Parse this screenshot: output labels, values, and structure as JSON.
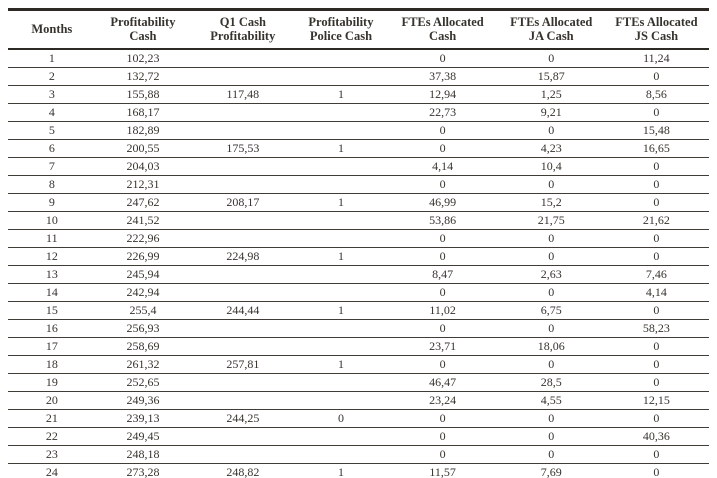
{
  "colors": {
    "text": "#37332e",
    "rule_heavy": "#2d2a26",
    "rule_light": "#403c36",
    "background": "#ffffff"
  },
  "table": {
    "headers": [
      "Months",
      "Profitability\nCash",
      "Q1 Cash\nProfitability",
      "Profitability\nPolice Cash",
      "FTEs Allocated\nCash",
      "FTEs Allocated\nJA Cash",
      "FTEs Allocated\nJS Cash"
    ],
    "rows": [
      [
        "1",
        "102,23",
        "",
        "",
        "0",
        "0",
        "11,24"
      ],
      [
        "2",
        "132,72",
        "",
        "",
        "37,38",
        "15,87",
        "0"
      ],
      [
        "3",
        "155,88",
        "117,48",
        "1",
        "12,94",
        "1,25",
        "8,56"
      ],
      [
        "4",
        "168,17",
        "",
        "",
        "22,73",
        "9,21",
        "0"
      ],
      [
        "5",
        "182,89",
        "",
        "",
        "0",
        "0",
        "15,48"
      ],
      [
        "6",
        "200,55",
        "175,53",
        "1",
        "0",
        "4,23",
        "16,65"
      ],
      [
        "7",
        "204,03",
        "",
        "",
        "4,14",
        "10,4",
        "0"
      ],
      [
        "8",
        "212,31",
        "",
        "",
        "0",
        "0",
        "0"
      ],
      [
        "9",
        "247,62",
        "208,17",
        "1",
        "46,99",
        "15,2",
        "0"
      ],
      [
        "10",
        "241,52",
        "",
        "",
        "53,86",
        "21,75",
        "21,62"
      ],
      [
        "11",
        "222,96",
        "",
        "",
        "0",
        "0",
        "0"
      ],
      [
        "12",
        "226,99",
        "224,98",
        "1",
        "0",
        "0",
        "0"
      ],
      [
        "13",
        "245,94",
        "",
        "",
        "8,47",
        "2,63",
        "7,46"
      ],
      [
        "14",
        "242,94",
        "",
        "",
        "0",
        "0",
        "4,14"
      ],
      [
        "15",
        "255,4",
        "244,44",
        "1",
        "11,02",
        "6,75",
        "0"
      ],
      [
        "16",
        "256,93",
        "",
        "",
        "0",
        "0",
        "58,23"
      ],
      [
        "17",
        "258,69",
        "",
        "",
        "23,71",
        "18,06",
        "0"
      ],
      [
        "18",
        "261,32",
        "257,81",
        "1",
        "0",
        "0",
        "0"
      ],
      [
        "19",
        "252,65",
        "",
        "",
        "46,47",
        "28,5",
        "0"
      ],
      [
        "20",
        "249,36",
        "",
        "",
        "23,24",
        "4,55",
        "12,15"
      ],
      [
        "21",
        "239,13",
        "244,25",
        "0",
        "0",
        "0",
        "0"
      ],
      [
        "22",
        "249,45",
        "",
        "",
        "0",
        "0",
        "40,36"
      ],
      [
        "23",
        "248,18",
        "",
        "",
        "0",
        "0",
        "0"
      ],
      [
        "24",
        "273,28",
        "248,82",
        "1",
        "11,57",
        "7,69",
        "0"
      ]
    ]
  }
}
